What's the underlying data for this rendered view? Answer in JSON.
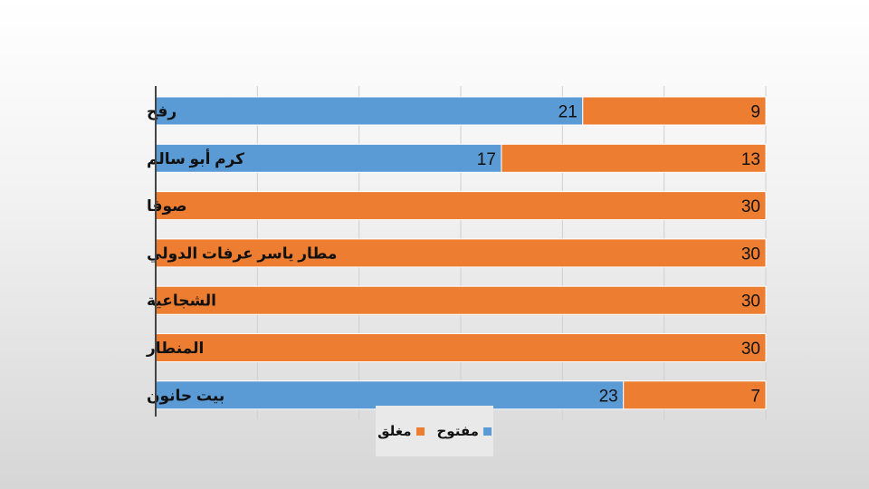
{
  "chart_data": {
    "type": "bar",
    "orientation": "horizontal",
    "stacked": true,
    "categories": [
      "رفح",
      "كرم أبو سالم",
      "صوفا",
      "مطار ياسر عرفات الدولي",
      "الشجاعية",
      "المنطار",
      "بيت حانون"
    ],
    "series": [
      {
        "name": "مفتوح",
        "color": "#5b9bd5",
        "values": [
          21,
          17,
          0,
          0,
          0,
          0,
          23
        ]
      },
      {
        "name": "مغلق",
        "color": "#ed7d31",
        "values": [
          9,
          13,
          30,
          30,
          30,
          30,
          7
        ]
      }
    ],
    "xlim": [
      0,
      30
    ],
    "grid": true,
    "legend_position": "bottom"
  }
}
